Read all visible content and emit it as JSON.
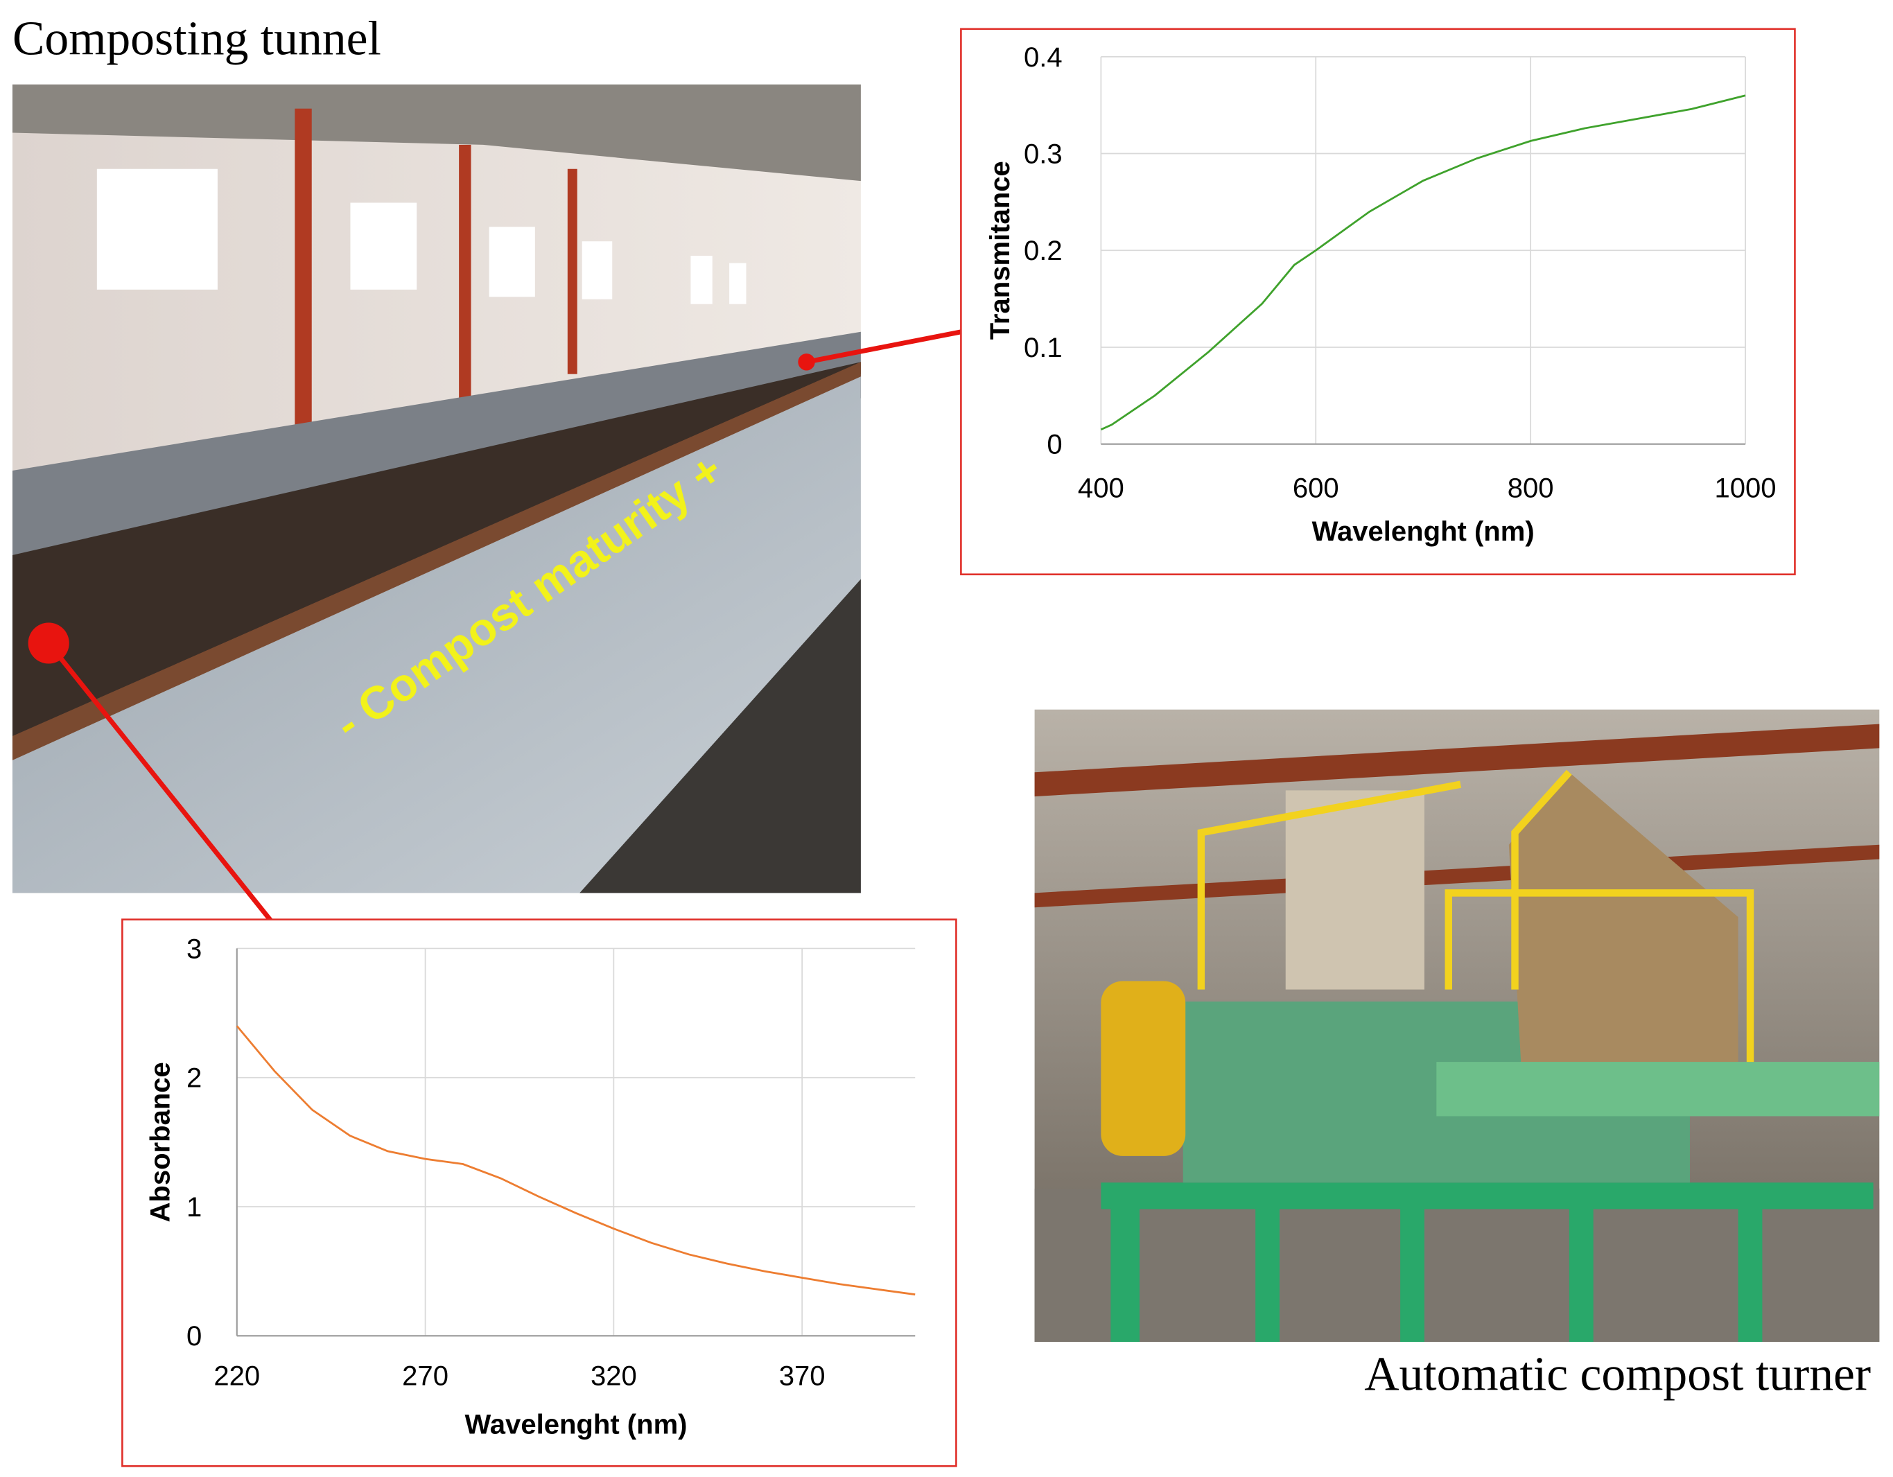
{
  "labels": {
    "tunnel_title": "Composting tunnel",
    "turner_caption": "Automatic compost turner",
    "maturity_arrow": "- Compost maturity +"
  },
  "chart_data": [
    {
      "type": "line",
      "x_label": "Wavelenght (nm)",
      "y_label": "Transmitance",
      "color": "#3fa22c",
      "x": [
        400,
        410,
        450,
        500,
        550,
        580,
        600,
        650,
        700,
        750,
        800,
        850,
        900,
        950,
        1000
      ],
      "values": [
        0.015,
        0.02,
        0.05,
        0.095,
        0.145,
        0.185,
        0.2,
        0.24,
        0.272,
        0.295,
        0.313,
        0.326,
        0.336,
        0.346,
        0.36
      ],
      "xlim": [
        400,
        1000
      ],
      "ylim": [
        0,
        0.4
      ],
      "xticks": [
        400,
        600,
        800,
        1000
      ],
      "yticks": [
        0,
        0.1,
        0.2,
        0.3,
        0.4
      ],
      "grid": true
    },
    {
      "type": "line",
      "x_label": "Wavelenght (nm)",
      "y_label": "Absorbance",
      "color": "#ed7d31",
      "x": [
        220,
        230,
        240,
        250,
        260,
        270,
        280,
        290,
        300,
        310,
        320,
        330,
        340,
        350,
        360,
        370,
        380,
        390,
        400
      ],
      "values": [
        2.4,
        2.05,
        1.75,
        1.55,
        1.43,
        1.37,
        1.33,
        1.22,
        1.08,
        0.95,
        0.83,
        0.72,
        0.63,
        0.56,
        0.5,
        0.45,
        0.4,
        0.36,
        0.32
      ],
      "xlim": [
        220,
        400
      ],
      "ylim": [
        0,
        3
      ],
      "xticks": [
        220,
        270,
        320,
        370
      ],
      "yticks": [
        0,
        1,
        2,
        3
      ],
      "grid": true
    }
  ]
}
